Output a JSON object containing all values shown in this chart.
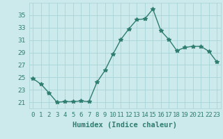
{
  "x": [
    0,
    1,
    2,
    3,
    4,
    5,
    6,
    7,
    8,
    9,
    10,
    11,
    12,
    13,
    14,
    15,
    16,
    17,
    18,
    19,
    20,
    21,
    22,
    23
  ],
  "y": [
    24.8,
    23.9,
    22.5,
    21.0,
    21.1,
    21.1,
    21.2,
    21.1,
    24.2,
    26.1,
    28.7,
    31.1,
    32.8,
    34.3,
    34.4,
    36.0,
    32.5,
    31.1,
    29.3,
    29.8,
    30.0,
    30.0,
    29.2,
    27.5
  ],
  "line_color": "#2e7d6e",
  "marker": "*",
  "marker_size": 4,
  "bg_color": "#cce9eb",
  "grid_color": "#a8d4d7",
  "xlabel": "Humidex (Indice chaleur)",
  "ylim": [
    20,
    37
  ],
  "xlim": [
    -0.5,
    23.5
  ],
  "yticks": [
    21,
    23,
    25,
    27,
    29,
    31,
    33,
    35
  ],
  "xtick_labels": [
    "0",
    "1",
    "2",
    "3",
    "4",
    "5",
    "6",
    "7",
    "8",
    "9",
    "10",
    "11",
    "12",
    "13",
    "14",
    "15",
    "16",
    "17",
    "18",
    "19",
    "20",
    "21",
    "22",
    "23"
  ],
  "title_color": "#2e7d6e",
  "xlabel_fontsize": 7.5,
  "tick_fontsize": 6.5,
  "line_width": 1.0
}
